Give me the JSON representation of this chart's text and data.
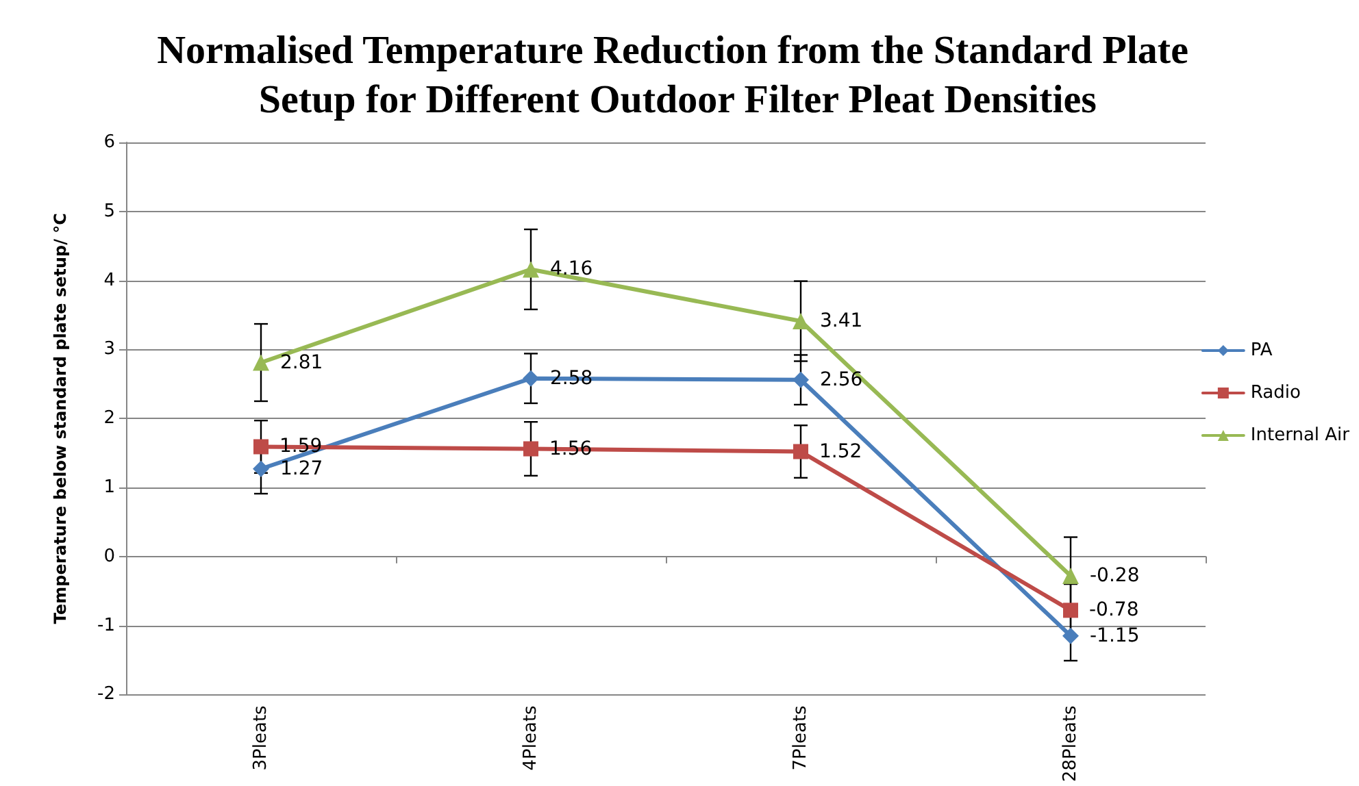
{
  "chart_data": {
    "type": "line",
    "title": "Normalised Temperature Reduction from the Standard Plate Setup for Different Outdoor Filter Pleat Densities",
    "ylabel": "Temperature below standard plate setup/ °C",
    "categories": [
      "3Pleats",
      "4Pleats",
      "7Pleats",
      "28Pleats"
    ],
    "series": [
      {
        "name": "PA",
        "color": "#4a7ebb",
        "marker": "diamond",
        "values": [
          1.27,
          2.58,
          2.56,
          -1.15
        ],
        "errors": [
          0.36,
          0.36,
          0.36,
          0.36
        ]
      },
      {
        "name": "Radio",
        "color": "#be4b48",
        "marker": "square",
        "values": [
          1.59,
          1.56,
          1.52,
          -0.78
        ],
        "errors": [
          0.38,
          0.39,
          0.38,
          0.38
        ]
      },
      {
        "name": "Internal Air",
        "color": "#98b954",
        "marker": "triangle",
        "values": [
          2.81,
          4.16,
          3.41,
          -0.28
        ],
        "errors": [
          0.56,
          0.58,
          0.58,
          0.56
        ]
      }
    ],
    "ylim": [
      -2,
      6
    ],
    "yticks": [
      -2,
      -1,
      0,
      1,
      2,
      3,
      4,
      5,
      6
    ],
    "grid": "y",
    "legend": "right",
    "data_labels": true,
    "line_style": "solid"
  }
}
